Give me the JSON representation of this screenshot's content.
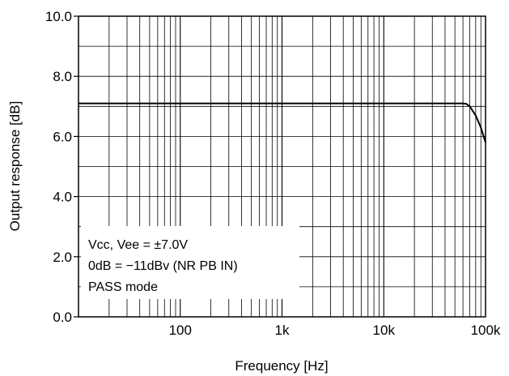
{
  "chart_data": {
    "type": "line",
    "title": "",
    "xlabel": "Frequency [Hz]",
    "ylabel": "Output response [dB]",
    "xscale": "log",
    "xlim": [
      10,
      100000
    ],
    "ylim": [
      0,
      10
    ],
    "x_ticks": [
      {
        "value": 100,
        "label": "100"
      },
      {
        "value": 1000,
        "label": "1k"
      },
      {
        "value": 10000,
        "label": "10k"
      },
      {
        "value": 100000,
        "label": "100k"
      }
    ],
    "y_ticks": [
      {
        "value": 0,
        "label": "0.0"
      },
      {
        "value": 2,
        "label": "2.0"
      },
      {
        "value": 4,
        "label": "4.0"
      },
      {
        "value": 6,
        "label": "6.0"
      },
      {
        "value": 8,
        "label": "8.0"
      },
      {
        "value": 10,
        "label": "10.0"
      }
    ],
    "grid": true,
    "series": [
      {
        "x": [
          10,
          100,
          1000,
          10000,
          50000,
          60000,
          65000,
          70000,
          80000,
          90000,
          100000
        ],
        "y": [
          7.1,
          7.1,
          7.1,
          7.1,
          7.1,
          7.1,
          7.08,
          7.0,
          6.7,
          6.3,
          5.8
        ]
      }
    ],
    "annotations": [
      "Vcc, Vee = ±7.0V",
      "0dB = −11dBv (NR PB IN)",
      "PASS mode"
    ]
  },
  "colors": {
    "line": "#000000",
    "grid": "#000000",
    "background": "#ffffff"
  }
}
